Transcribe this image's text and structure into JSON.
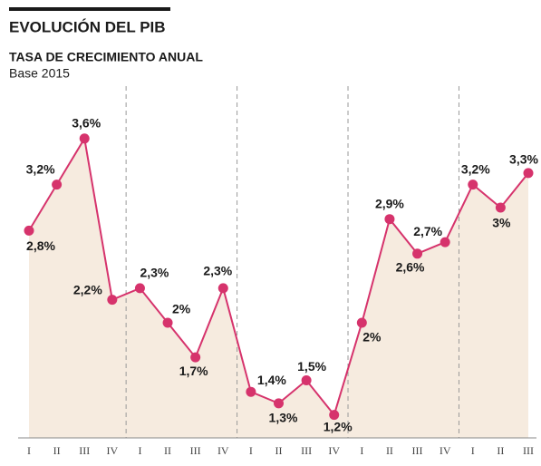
{
  "chart_data": {
    "type": "line",
    "title": "EVOLUCIÓN DEL PIB",
    "subtitle": "TASA DE CRECIMIENTO ANUAL",
    "note": "Base 2015",
    "categories": [
      "I",
      "II",
      "III",
      "IV",
      "I",
      "II",
      "III",
      "IV",
      "I",
      "II",
      "III",
      "IV",
      "I",
      "II",
      "III",
      "IV",
      "I",
      "II",
      "III"
    ],
    "values": [
      2.8,
      3.2,
      3.6,
      2.2,
      2.3,
      2.0,
      1.7,
      2.3,
      1.4,
      1.3,
      1.5,
      1.2,
      2.0,
      2.9,
      2.6,
      2.7,
      3.2,
      3.0,
      3.3
    ],
    "value_labels": [
      "2,8%",
      "3,2%",
      "3,6%",
      "2,2%",
      "2,3%",
      "2%",
      "1,7%",
      "2,3%",
      "1,4%",
      "1,3%",
      "1,5%",
      "1,2%",
      "2%",
      "2,9%",
      "2,6%",
      "2,7%",
      "3,2%",
      "3%",
      "3,3%"
    ],
    "color": "#d6336c",
    "fill": "#f6ebdf",
    "ylim": [
      1,
      4
    ]
  }
}
